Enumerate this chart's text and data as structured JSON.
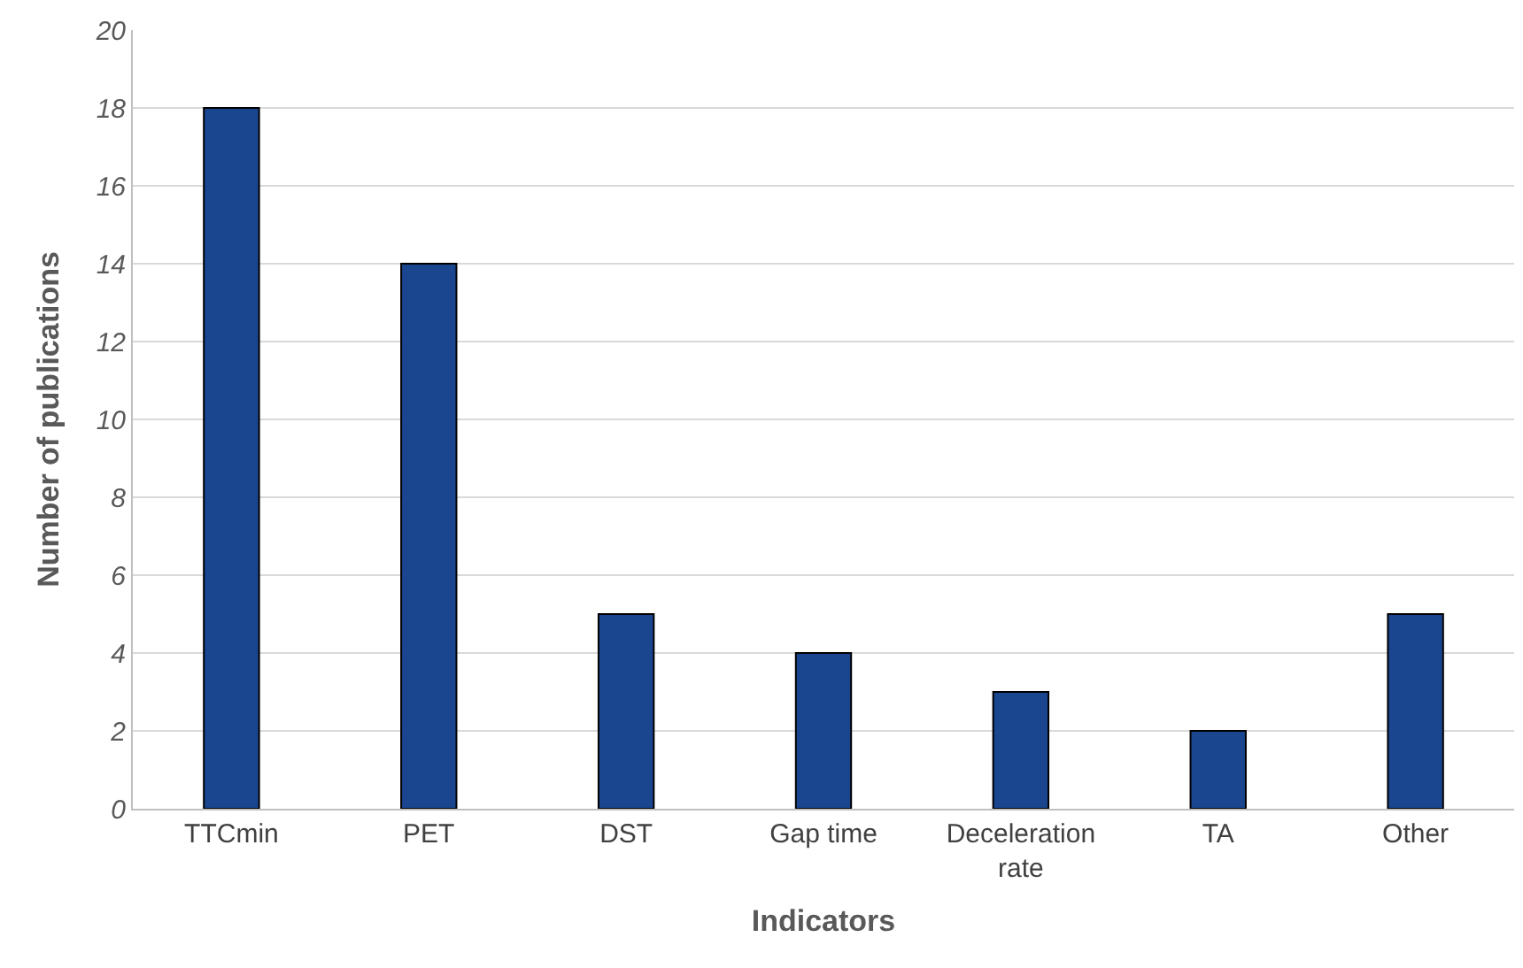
{
  "chart_data": {
    "type": "bar",
    "xlabel": "Indicators",
    "ylabel": "Number of publications",
    "categories": [
      "TTCmin",
      "PET",
      "DST",
      "Gap time",
      "Deceleration rate",
      "TA",
      "Other"
    ],
    "values": [
      18,
      14,
      5,
      4,
      3,
      2,
      5
    ],
    "color": "#1a4690",
    "ylim": [
      0,
      20
    ],
    "yticks": [
      0,
      2,
      4,
      6,
      8,
      10,
      12,
      14,
      16,
      18,
      20
    ],
    "grid": "y",
    "legend": false
  }
}
